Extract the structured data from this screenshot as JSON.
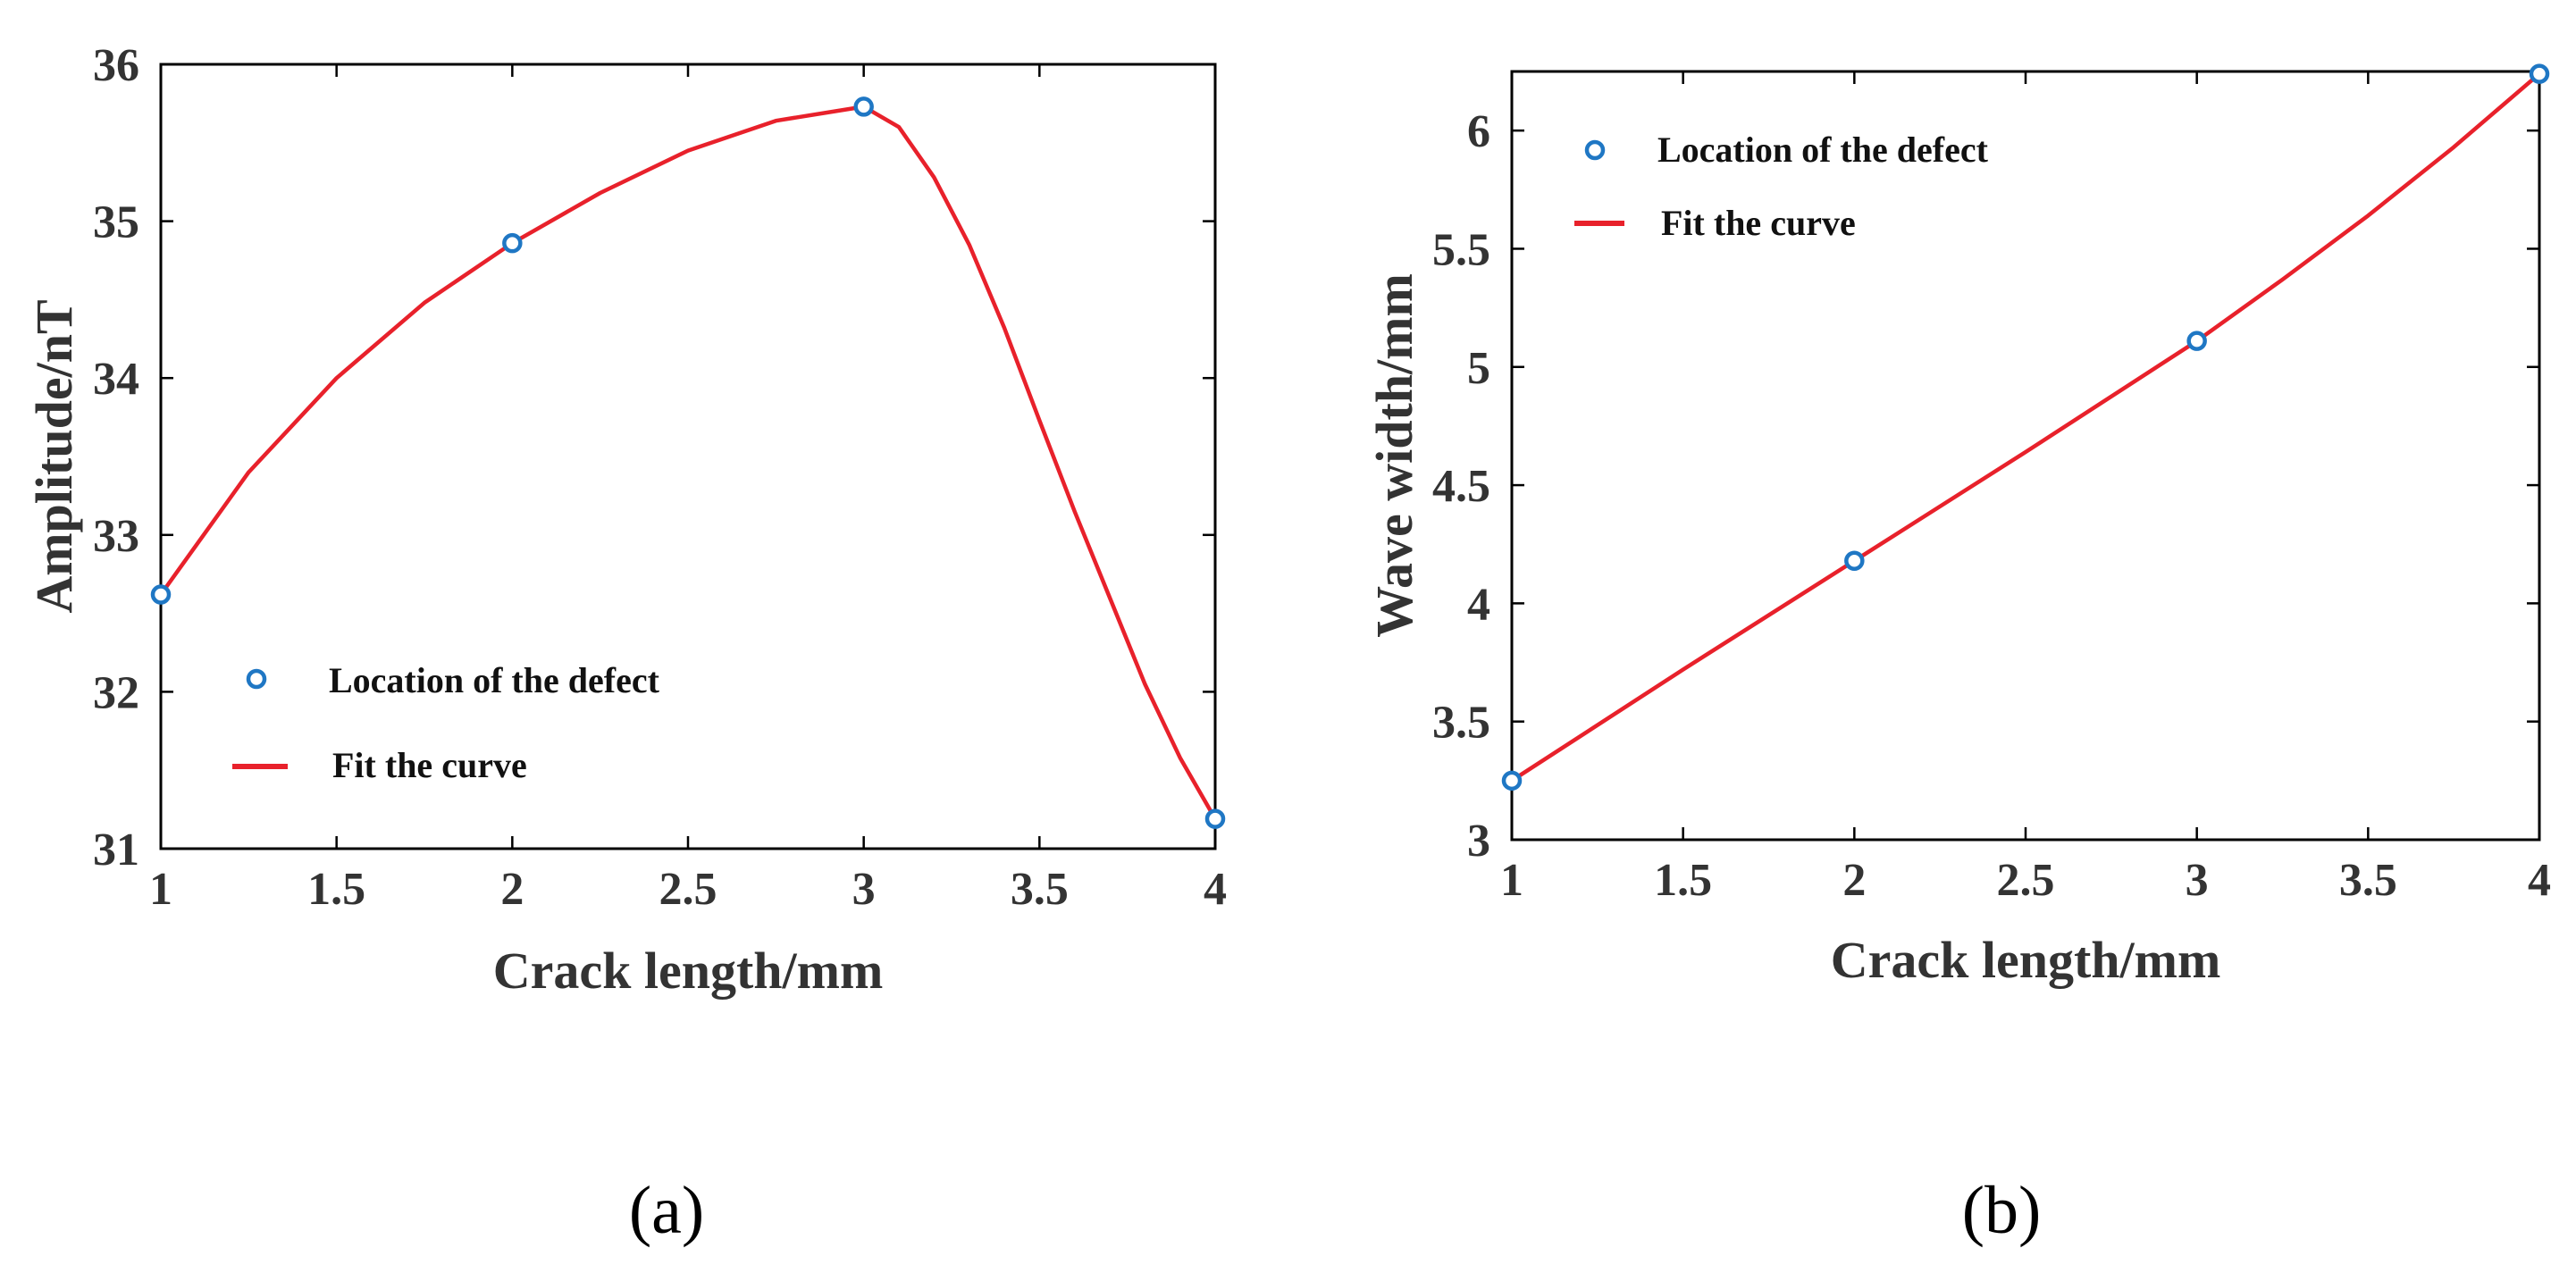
{
  "chart_data": [
    {
      "type": "line",
      "panel_label": "(a)",
      "xlabel": "Crack length/mm",
      "ylabel": "Amplitude/nT",
      "xlim": [
        1,
        4
      ],
      "ylim": [
        31,
        36
      ],
      "xticks": [
        1,
        1.5,
        2,
        2.5,
        3,
        3.5,
        4
      ],
      "yticks": [
        31,
        32,
        33,
        34,
        35,
        36
      ],
      "legend_position": "lower-left",
      "colors": {
        "points": "#1f77c4",
        "fit": "#e8212b"
      },
      "series": [
        {
          "name": "Location of the defect",
          "style": "markers",
          "x": [
            1,
            2,
            3,
            4
          ],
          "y": [
            32.62,
            34.86,
            35.73,
            31.19
          ]
        },
        {
          "name": "Fit the curve",
          "style": "line",
          "x": [
            1,
            1.25,
            1.5,
            1.75,
            2,
            2.25,
            2.5,
            2.75,
            3,
            3.1,
            3.2,
            3.3,
            3.4,
            3.5,
            3.6,
            3.7,
            3.8,
            3.9,
            4
          ],
          "y": [
            32.62,
            33.4,
            34.0,
            34.48,
            34.86,
            35.18,
            35.45,
            35.64,
            35.73,
            35.6,
            35.28,
            34.85,
            34.32,
            33.73,
            33.15,
            32.6,
            32.05,
            31.58,
            31.19
          ]
        }
      ]
    },
    {
      "type": "line",
      "panel_label": "(b)",
      "xlabel": "Crack length/mm",
      "ylabel": "Wave width/mm",
      "xlim": [
        1,
        4
      ],
      "ylim": [
        3,
        6.25
      ],
      "xticks": [
        1,
        1.5,
        2,
        2.5,
        3,
        3.5,
        4
      ],
      "yticks": [
        3,
        3.5,
        4,
        4.5,
        5,
        5.5,
        6
      ],
      "legend_position": "top-left",
      "colors": {
        "points": "#1f77c4",
        "fit": "#e8212b"
      },
      "series": [
        {
          "name": "Location of the defect",
          "style": "markers",
          "x": [
            1,
            2,
            3,
            4
          ],
          "y": [
            3.25,
            4.18,
            5.11,
            6.24
          ]
        },
        {
          "name": "Fit the curve",
          "style": "line",
          "x": [
            1,
            1.5,
            2,
            2.5,
            3,
            3.25,
            3.5,
            3.75,
            4
          ],
          "y": [
            3.25,
            3.72,
            4.18,
            4.64,
            5.11,
            5.37,
            5.64,
            5.93,
            6.24
          ]
        }
      ]
    }
  ]
}
